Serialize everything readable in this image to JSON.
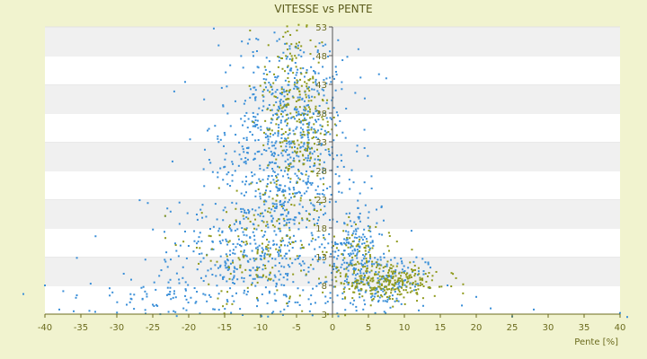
{
  "chart_data": {
    "type": "scatter",
    "title": "VITESSE vs PENTE",
    "xlabel": "Pente [%]",
    "ylabel": "",
    "xlim": [
      -40,
      40
    ],
    "ylim": [
      3,
      53
    ],
    "x_ticks": [
      "-40",
      "-35",
      "-30",
      "-25",
      "-20",
      "-15",
      "-10",
      "-5",
      "0",
      "5",
      "10",
      "15",
      "20",
      "25",
      "30",
      "35",
      "40"
    ],
    "y_ticks": [
      "3",
      "8",
      "13",
      "18",
      "23",
      "28",
      "33",
      "38",
      "43",
      "48",
      "53"
    ],
    "y_axis_position": "x=0",
    "grid": "horizontal alternating bands",
    "series": [
      {
        "color": "#3a8fd8",
        "clusters": [
          {
            "center": [
              -7,
              28
            ],
            "spread": [
              4.5,
              11
            ],
            "n": 700
          },
          {
            "center": [
              -5,
              40
            ],
            "spread": [
              3,
              7
            ],
            "n": 180
          },
          {
            "center": [
              -13,
              12
            ],
            "spread": [
              6,
              5
            ],
            "n": 280
          },
          {
            "center": [
              3,
              14
            ],
            "spread": [
              2,
              4
            ],
            "n": 180
          },
          {
            "center": [
              7,
              9
            ],
            "spread": [
              3,
              2.5
            ],
            "n": 160
          },
          {
            "center": [
              -25,
              6
            ],
            "spread": [
              6,
              2.5
            ],
            "n": 60
          }
        ],
        "sparse_points": [
          [
            -40,
            8
          ],
          [
            -43,
            6.5
          ],
          [
            -36,
            3.5
          ],
          [
            -31,
            7.5
          ],
          [
            -28,
            9
          ],
          [
            -22,
            7
          ],
          [
            22,
            4
          ],
          [
            25,
            2.6
          ],
          [
            28,
            3.8
          ],
          [
            40,
            3.2
          ],
          [
            41,
            2.5
          ],
          [
            -38,
            3.8
          ],
          [
            -33,
            3.4
          ],
          [
            -26,
            3.1
          ],
          [
            18,
            4.5
          ],
          [
            20,
            6
          ],
          [
            16,
            8
          ]
        ]
      },
      {
        "color": "#8f9a1c",
        "clusters": [
          {
            "center": [
              -5,
              38
            ],
            "spread": [
              2.5,
              9
            ],
            "n": 280
          },
          {
            "center": [
              -10,
              15
            ],
            "spread": [
              5,
              6
            ],
            "n": 160
          },
          {
            "center": [
              8,
              8.5
            ],
            "spread": [
              3.5,
              1.5
            ],
            "n": 260
          },
          {
            "center": [
              4,
              13
            ],
            "spread": [
              2,
              3
            ],
            "n": 80
          }
        ],
        "sparse_points": []
      }
    ]
  }
}
